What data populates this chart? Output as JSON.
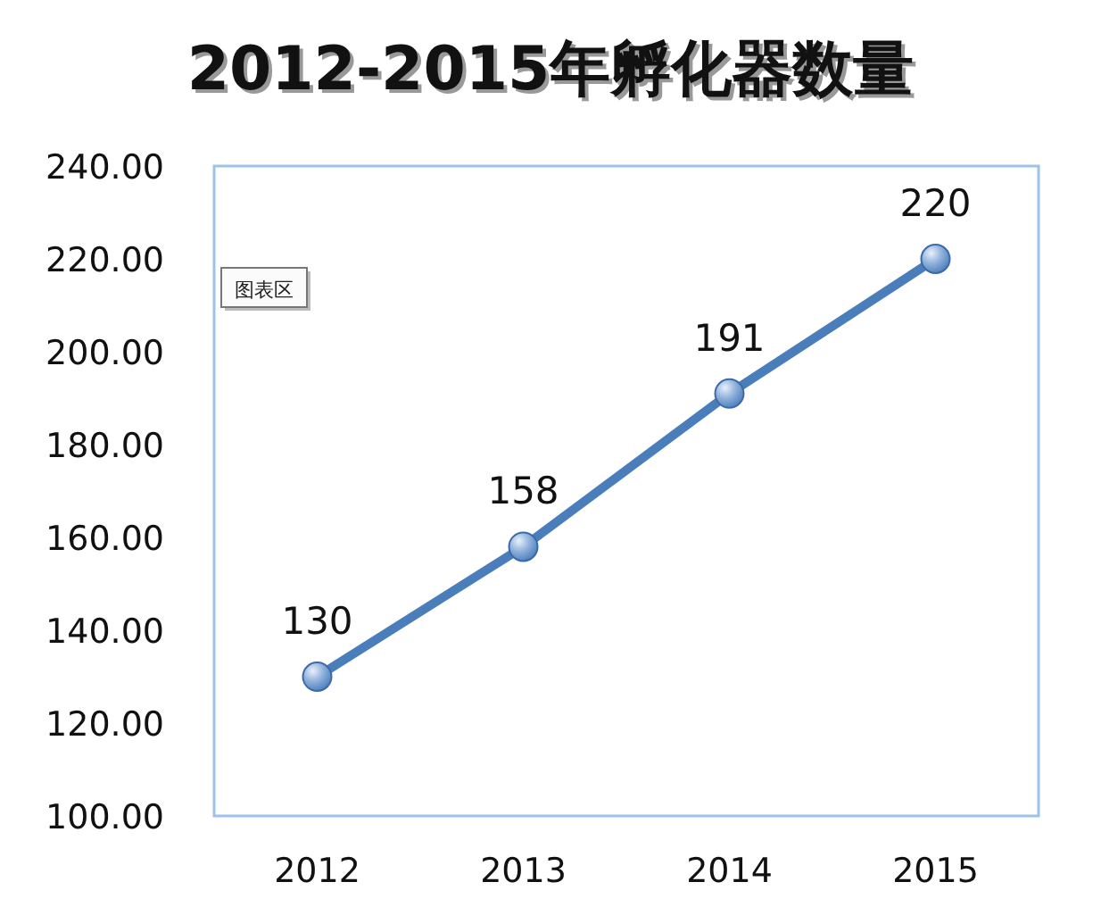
{
  "chart_data": {
    "type": "line",
    "title": "2012-2015年孵化器数量",
    "categories": [
      "2012",
      "2013",
      "2014",
      "2015"
    ],
    "series": [
      {
        "color": "#4a7ebb",
        "values": [
          130,
          158,
          191,
          220
        ]
      }
    ],
    "ylim": [
      100,
      240
    ],
    "yticks": [
      {
        "value": 100,
        "label": "100.00"
      },
      {
        "value": 120,
        "label": "120.00"
      },
      {
        "value": 140,
        "label": "140.00"
      },
      {
        "value": 160,
        "label": "160.00"
      },
      {
        "value": 180,
        "label": "180.00"
      },
      {
        "value": 200,
        "label": "200.00"
      },
      {
        "value": 220,
        "label": "220.00"
      },
      {
        "value": 240,
        "label": "240.00"
      }
    ],
    "data_labels": true,
    "marker": "circle",
    "line_style": "solid",
    "grid": false,
    "annotations": [
      "图表区"
    ]
  }
}
